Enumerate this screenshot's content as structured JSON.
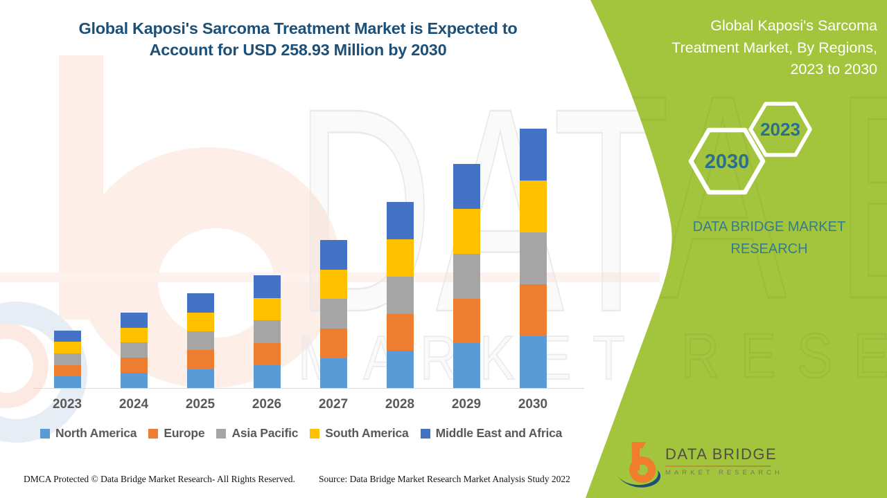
{
  "header": {
    "title_line1": "Global Kaposi's Sarcoma Treatment Market is Expected to",
    "title_line2": "Account for USD 258.93 Million by 2030"
  },
  "side_panel": {
    "panel_color": "#a3c53e",
    "title_lines": [
      "Global Kaposi's Sarcoma",
      "Treatment Market, By Regions,",
      "2023 to 2030"
    ],
    "hexagons": [
      {
        "label": "2030"
      },
      {
        "label": "2023"
      }
    ],
    "brand_line1": "DATA BRIDGE MARKET",
    "brand_line2": "RESEARCH",
    "hexagon_text_color": "#2a6f8e"
  },
  "chart_data": {
    "type": "bar",
    "stacked": true,
    "title": "Global Kaposi's Sarcoma Treatment Market, By Regions, 2023 to 2030",
    "unit": "USD Million",
    "categories": [
      "2023",
      "2024",
      "2025",
      "2026",
      "2027",
      "2028",
      "2029",
      "2030"
    ],
    "series": [
      {
        "name": "North America",
        "color": "#5B9BD5",
        "values": [
          11.5,
          15.1,
          18.9,
          22.5,
          29.6,
          37.1,
          44.7,
          51.8
        ]
      },
      {
        "name": "Europe",
        "color": "#ED7D31",
        "values": [
          11.5,
          15.1,
          18.9,
          22.5,
          29.6,
          37.1,
          44.7,
          51.8
        ]
      },
      {
        "name": "Asia Pacific",
        "color": "#A5A5A5",
        "values": [
          11.5,
          15.1,
          18.9,
          22.5,
          29.6,
          37.1,
          44.7,
          51.8
        ]
      },
      {
        "name": "South America",
        "color": "#FFC000",
        "values": [
          11.5,
          15.1,
          18.9,
          22.5,
          29.6,
          37.1,
          44.7,
          51.8
        ]
      },
      {
        "name": "Middle East and Africa",
        "color": "#4472C4",
        "values": [
          11.5,
          15.1,
          18.9,
          22.5,
          29.6,
          37.1,
          44.7,
          51.8
        ]
      }
    ],
    "totals_usd_million": [
      57.3,
      75.3,
      94.6,
      112.6,
      147.9,
      185.4,
      223.7,
      258.93
    ],
    "xlabel": "",
    "ylabel": "",
    "y_axis_shown": false,
    "gridlines": false,
    "legend_position": "bottom"
  },
  "watermark": {
    "big_text": "DATA BRIDGE",
    "small_text": "MARKET RESEARCH"
  },
  "logo": {
    "name_top": "DATA BRIDGE",
    "name_bottom": "MARKET RESEARCH"
  },
  "footer": {
    "left": "DMCA Protected © Data Bridge Market Research- All Rights Reserved.",
    "right": "Source: Data Bridge Market Research Market Analysis Study 2022"
  },
  "colors": {
    "title_text": "#1d5078",
    "axis_label_text": "#595959",
    "legend_text": "#595959",
    "panel_green": "#a3c53e"
  }
}
